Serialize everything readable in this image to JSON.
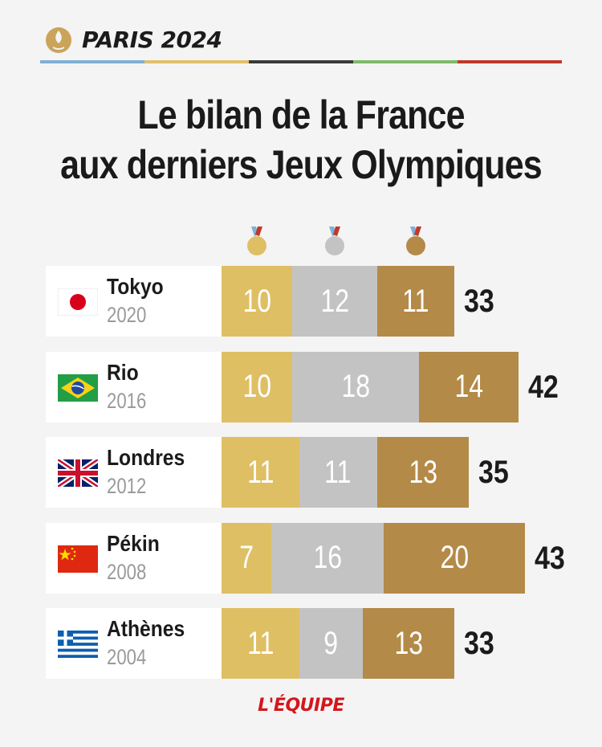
{
  "header": {
    "brand": "PARIS 2024"
  },
  "stripe_colors": [
    "#7fb0d6",
    "#e1c06b",
    "#3a3a3a",
    "#7dbb6b",
    "#c0392b"
  ],
  "title_lines": [
    "Le bilan de la France",
    "aux derniers Jeux Olympiques"
  ],
  "medal_colors": {
    "gold": "#dfbf64",
    "silver": "#c3c3c3",
    "bronze": "#b48a48"
  },
  "chart_data": {
    "type": "bar",
    "stacked": true,
    "orientation": "horizontal",
    "title": "Le bilan de la France aux derniers Jeux Olympiques",
    "categories": [
      "Tokyo",
      "Rio",
      "Londres",
      "Pékin",
      "Athènes"
    ],
    "years": [
      "2020",
      "2016",
      "2012",
      "2008",
      "2004"
    ],
    "flags": [
      "japan-flag",
      "brazil-flag",
      "uk-flag",
      "china-flag",
      "greece-flag"
    ],
    "series": [
      {
        "medal": "gold",
        "values": [
          10,
          10,
          11,
          7,
          11
        ]
      },
      {
        "medal": "silver",
        "values": [
          12,
          18,
          11,
          16,
          9
        ]
      },
      {
        "medal": "bronze",
        "values": [
          11,
          14,
          13,
          20,
          13
        ]
      }
    ],
    "totals": [
      33,
      42,
      35,
      43,
      33
    ]
  },
  "footer": {
    "logo_text": "L'ÉQUIPE"
  }
}
